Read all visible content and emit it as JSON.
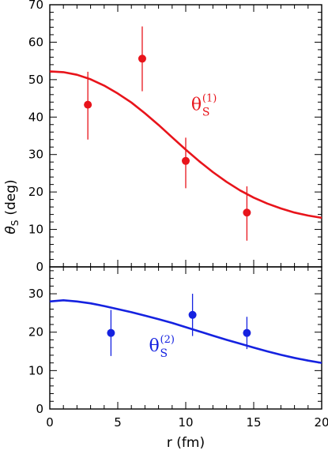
{
  "chart_data": [
    {
      "type": "scatter",
      "panel": "top",
      "xlim": [
        0,
        20
      ],
      "ylim": [
        0,
        70
      ],
      "xticks": [
        0,
        5,
        10,
        15,
        20
      ],
      "yticks": [
        0,
        10,
        20,
        30,
        40,
        50,
        60,
        70
      ],
      "ylabel_main": "θ",
      "ylabel_sub": "S",
      "ylabel_unit": "(deg)",
      "color": "#e8141b",
      "points": [
        {
          "x": 2.8,
          "y": 43.3,
          "err_low": 9.3,
          "err_high": 8.8
        },
        {
          "x": 6.8,
          "y": 55.6,
          "err_low": 8.7,
          "err_high": 8.6
        },
        {
          "x": 10.0,
          "y": 28.3,
          "err_low": 7.3,
          "err_high": 6.2
        },
        {
          "x": 14.5,
          "y": 14.5,
          "err_low": 7.5,
          "err_high": 7.0
        }
      ],
      "curve": {
        "x": [
          0,
          1,
          2,
          3,
          4,
          5,
          6,
          7,
          8,
          9,
          10,
          11,
          12,
          13,
          14,
          15,
          16,
          17,
          18,
          19,
          20
        ],
        "y": [
          52.2,
          52.0,
          51.3,
          50.1,
          48.4,
          46.3,
          43.9,
          41.0,
          37.9,
          34.6,
          31.3,
          28.2,
          25.3,
          22.7,
          20.4,
          18.5,
          16.9,
          15.6,
          14.5,
          13.7,
          13.1
        ]
      },
      "series_label": {
        "symbol": "θ",
        "sub": "S",
        "sup": "(1)",
        "x": 10.4,
        "y": 41.8
      }
    },
    {
      "type": "scatter",
      "panel": "bottom",
      "xlim": [
        0,
        20
      ],
      "ylim": [
        0,
        37
      ],
      "xticks": [
        0,
        5,
        10,
        15,
        20
      ],
      "yticks": [
        0,
        10,
        20,
        30
      ],
      "xlabel": "r  (fm)",
      "color": "#1522e0",
      "points": [
        {
          "x": 4.5,
          "y": 19.8,
          "err_low": 6.0,
          "err_high": 6.0
        },
        {
          "x": 10.5,
          "y": 24.5,
          "err_low": 5.5,
          "err_high": 5.5
        },
        {
          "x": 14.5,
          "y": 19.8,
          "err_low": 4.2,
          "err_high": 4.2
        }
      ],
      "curve": {
        "x": [
          0,
          1,
          2,
          3,
          4,
          5,
          6,
          7,
          8,
          9,
          10,
          11,
          12,
          13,
          14,
          15,
          16,
          17,
          18,
          19,
          20
        ],
        "y": [
          28.0,
          28.3,
          28.0,
          27.5,
          26.8,
          26.0,
          25.2,
          24.3,
          23.4,
          22.4,
          21.3,
          20.2,
          19.1,
          18.0,
          17.0,
          16.0,
          15.0,
          14.1,
          13.3,
          12.6,
          12.0
        ]
      },
      "series_label": {
        "symbol": "θ",
        "sub": "S",
        "sup": "(2)",
        "x": 7.3,
        "y": 15.0
      }
    }
  ]
}
